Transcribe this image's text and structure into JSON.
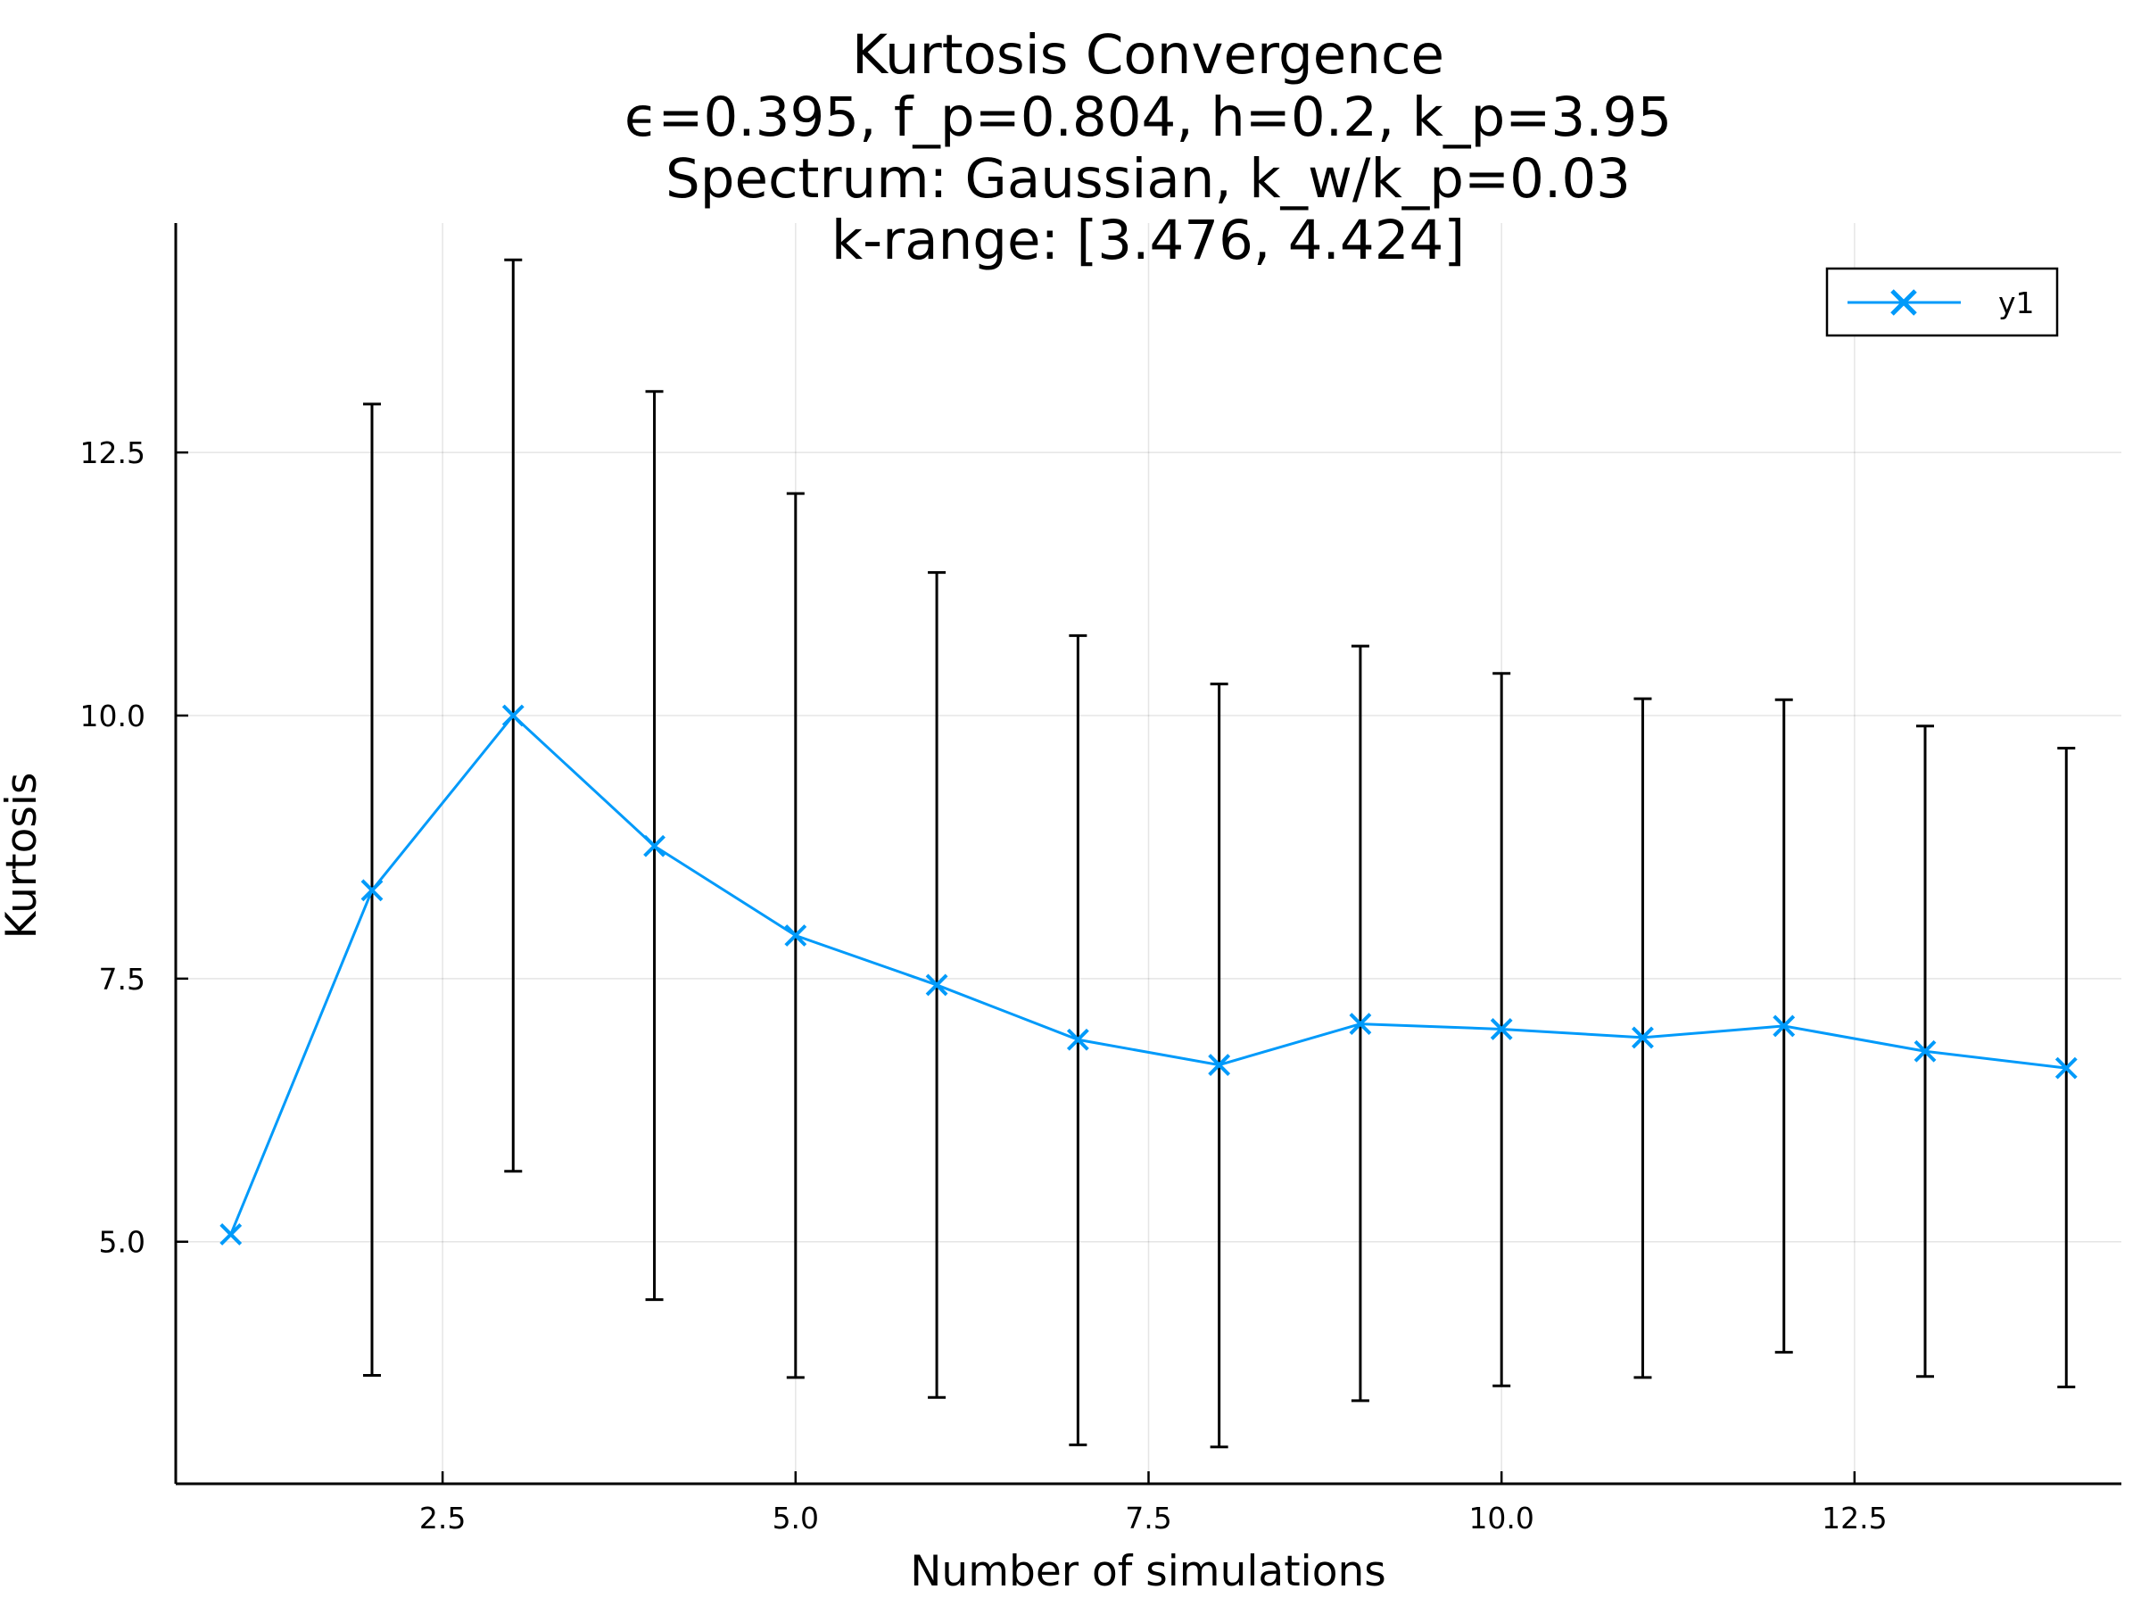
{
  "chart_data": {
    "type": "line",
    "title_lines": [
      "Kurtosis Convergence",
      "ϵ=0.395, f_p=0.804, h=0.2, k_p=3.95",
      "Spectrum: Gaussian, k_w/k_p=0.03",
      "k-range: [3.476, 4.424]"
    ],
    "xlabel": "Number of simulations",
    "ylabel": "Kurtosis",
    "xlim": [
      0.61,
      14.39
    ],
    "ylim": [
      2.7,
      14.68
    ],
    "x_ticks": [
      2.5,
      5.0,
      7.5,
      10.0,
      12.5
    ],
    "x_tick_labels": [
      "2.5",
      "5.0",
      "7.5",
      "10.0",
      "12.5"
    ],
    "y_ticks": [
      5.0,
      7.5,
      10.0,
      12.5
    ],
    "y_tick_labels": [
      "5.0",
      "7.5",
      "10.0",
      "12.5"
    ],
    "grid": true,
    "legend_position": "top-right",
    "series": [
      {
        "name": "y1",
        "color": "#009AFA",
        "marker": "x",
        "x": [
          1,
          2,
          3,
          4,
          5,
          6,
          7,
          8,
          9,
          10,
          11,
          12,
          13,
          14
        ],
        "values": [
          5.07,
          8.34,
          10.0,
          8.76,
          7.91,
          7.44,
          6.92,
          6.68,
          7.07,
          7.02,
          6.94,
          7.05,
          6.81,
          6.65
        ],
        "error_lower": [
          null,
          3.73,
          5.67,
          4.45,
          3.71,
          3.52,
          3.07,
          3.05,
          3.49,
          3.63,
          3.71,
          3.95,
          3.72,
          3.62
        ],
        "error_upper": [
          null,
          12.96,
          14.33,
          13.08,
          12.11,
          11.36,
          10.76,
          10.3,
          10.66,
          10.4,
          10.16,
          10.15,
          9.9,
          9.69
        ],
        "error_color": "#000000"
      }
    ]
  }
}
